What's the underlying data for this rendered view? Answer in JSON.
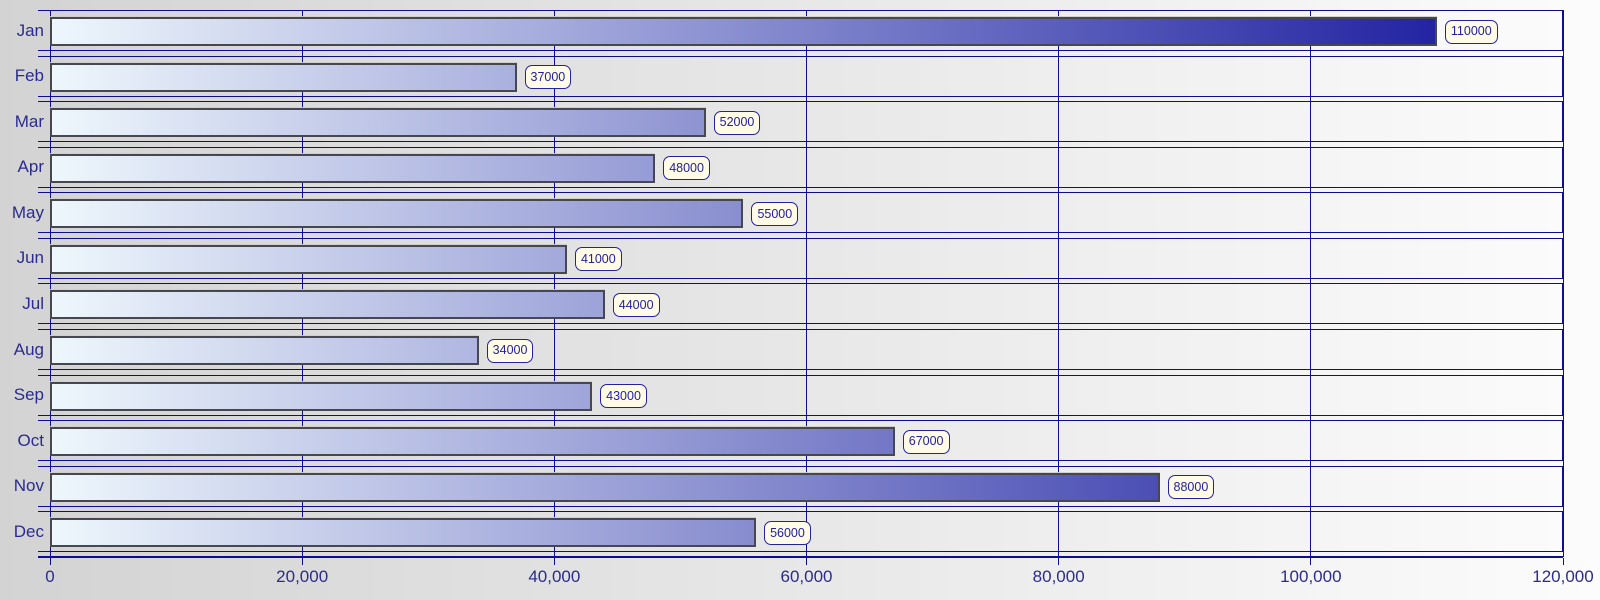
{
  "chart_data": {
    "type": "bar",
    "orientation": "horizontal",
    "title": "",
    "xlabel": "",
    "ylabel": "",
    "categories": [
      "Jan",
      "Feb",
      "Mar",
      "Apr",
      "May",
      "Jun",
      "Jul",
      "Aug",
      "Sep",
      "Oct",
      "Nov",
      "Dec"
    ],
    "values": [
      110000,
      37000,
      52000,
      48000,
      55000,
      41000,
      44000,
      34000,
      43000,
      67000,
      88000,
      56000
    ],
    "value_labels": [
      "110000",
      "37000",
      "52000",
      "48000",
      "55000",
      "41000",
      "44000",
      "34000",
      "43000",
      "67000",
      "88000",
      "56000"
    ],
    "xlim": [
      0,
      120000
    ],
    "xticks": [
      0,
      20000,
      40000,
      60000,
      80000,
      100000,
      120000
    ],
    "xtick_labels": [
      "0",
      "20,000",
      "40,000",
      "60,000",
      "80,000",
      "100,000",
      "120,000"
    ],
    "grid": "vertical-gridlines-on",
    "legend": "none"
  },
  "colors": {
    "page_bg_left": "#d3d3d3",
    "page_bg_right": "#fcfcfc",
    "grid_line": "#0d0d8e",
    "axis_text": "#2b2b8f",
    "bar_gradient_start": "#eef7fc",
    "bar_gradient_end": "#10109a",
    "bar_border": "#47474f",
    "value_box_bg": "#fffbe6",
    "value_box_border": "#2323a0",
    "value_text": "#2222a0"
  }
}
